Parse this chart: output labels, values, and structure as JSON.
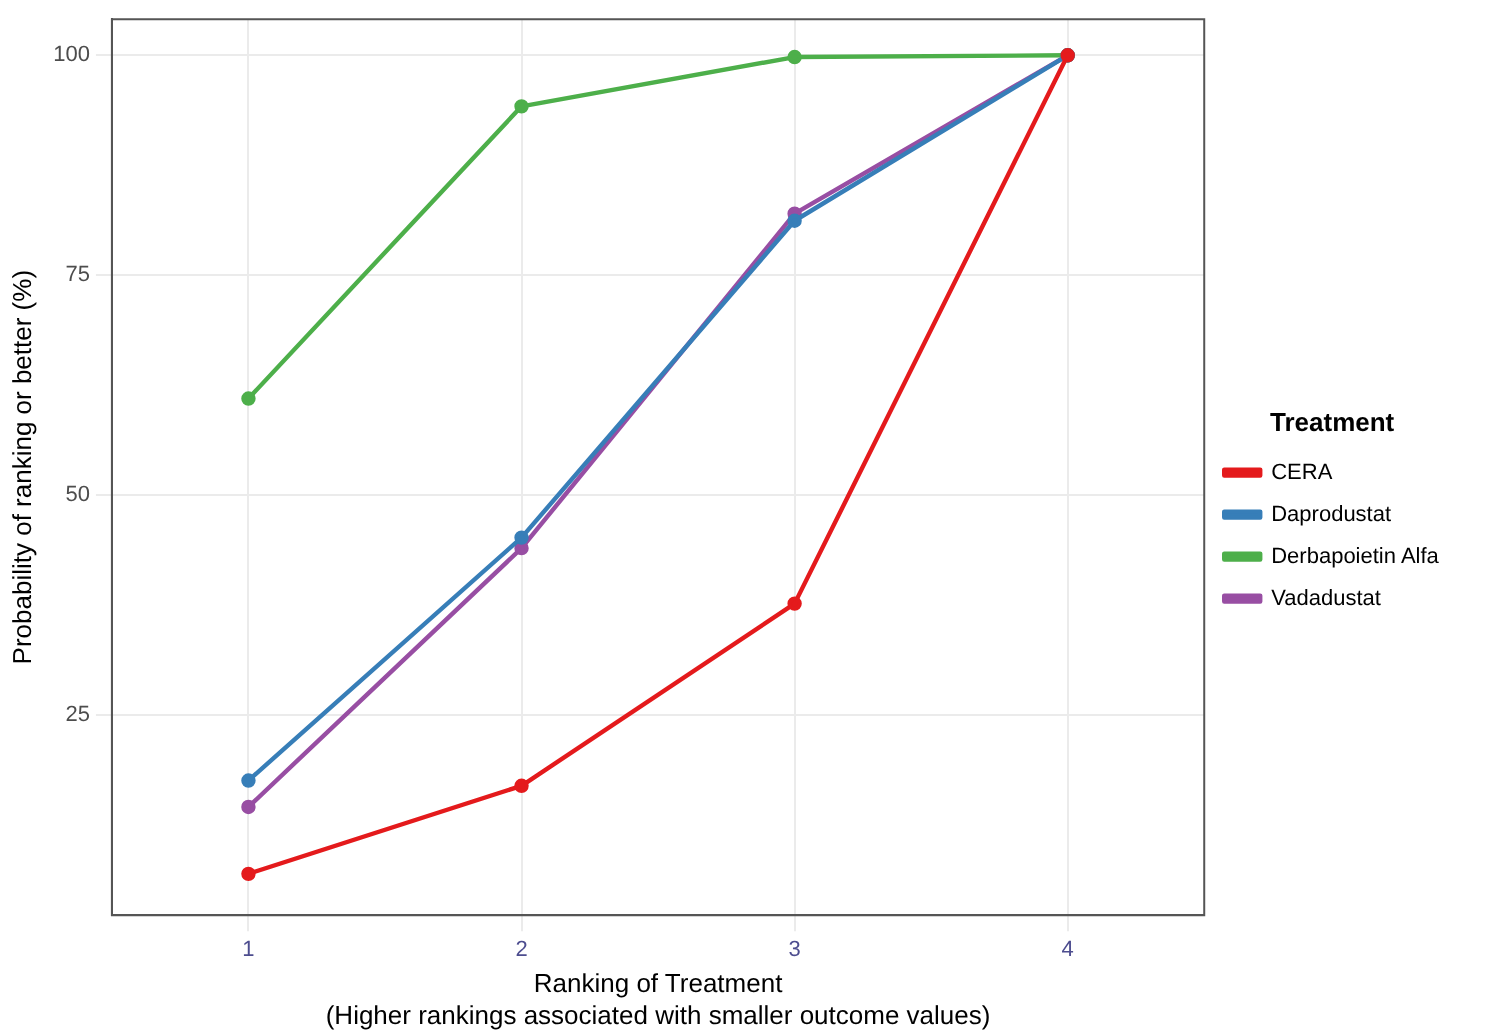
{
  "chart_data": {
    "type": "line",
    "xlabel": "Ranking of Treatment\n(Higher rankings associated with smaller outcome values)",
    "ylabel": "Probability of ranking or better (%)",
    "legend_title": "Treatment",
    "legend": "right",
    "grid": true,
    "marker": "circle",
    "line_style": "solid",
    "categories": [
      "1",
      "2",
      "3",
      "4"
    ],
    "ylim": [
      2.3,
      104.1
    ],
    "yticks": [
      25,
      50,
      75,
      100
    ],
    "series": [
      {
        "name": "CERA",
        "color": "#e41a1c",
        "values": [
          7.0,
          17.0,
          37.7,
          100
        ]
      },
      {
        "name": "Daprodustat",
        "color": "#377eb8",
        "values": [
          17.6,
          45.2,
          81.2,
          100
        ]
      },
      {
        "name": "Derbapoietin Alfa",
        "color": "#4daf4a",
        "values": [
          61.0,
          94.2,
          99.8,
          100
        ]
      },
      {
        "name": "Vadadustat",
        "color": "#984ea3",
        "values": [
          14.6,
          44.0,
          82.0,
          100
        ]
      }
    ]
  }
}
